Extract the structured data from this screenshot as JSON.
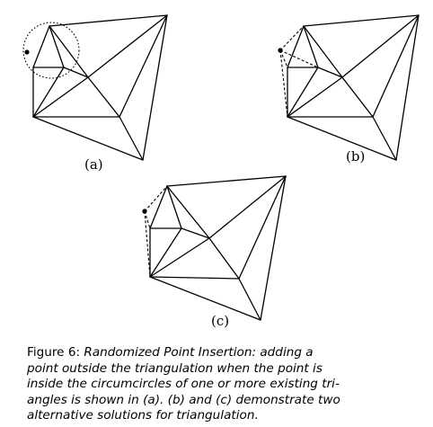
{
  "figure": {
    "panels": [
      {
        "label": "(a)",
        "type": "circumcircle-test"
      },
      {
        "label": "(b)",
        "type": "alternative-solution"
      },
      {
        "label": "(c)",
        "type": "alternative-solution"
      }
    ]
  },
  "caption": {
    "label": "Figure 6",
    "separator": ": ",
    "lines": [
      "Randomized Point Insertion: adding a",
      "point outside the triangulation when the point is",
      "inside the circumcircles of one or more existing tri-",
      "angles is shown in (a). (b) and (c) demonstrate two",
      "alternative solutions for triangulation."
    ]
  }
}
